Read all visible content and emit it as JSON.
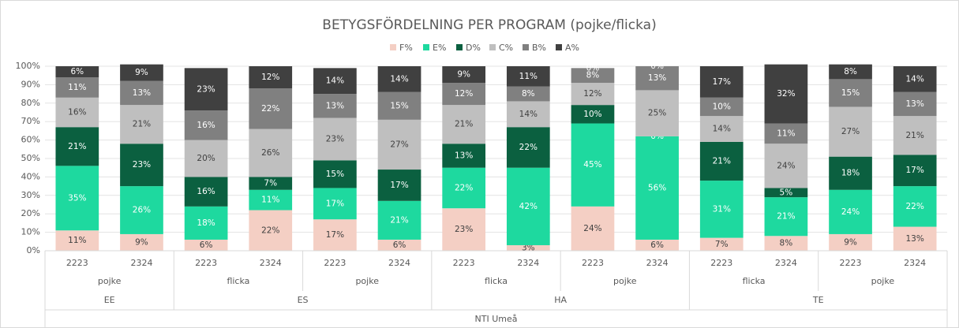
{
  "chart_data": {
    "type": "stacked_bar",
    "title": "BETYGSFÖRDELNING PER PROGRAM (pojke/flicka)",
    "top_group": "NTI Umeå",
    "groups": [
      {
        "name": "EE",
        "subgroups": [
          {
            "name": "pojke",
            "categories": [
              "2223",
              "2324"
            ]
          }
        ]
      },
      {
        "name": "ES",
        "subgroups": [
          {
            "name": "flicka",
            "categories": [
              "2223",
              "2324"
            ]
          },
          {
            "name": "pojke",
            "categories": [
              "2223",
              "2324"
            ]
          }
        ]
      },
      {
        "name": "HA",
        "subgroups": [
          {
            "name": "flicka",
            "categories": [
              "2223",
              "2324"
            ]
          },
          {
            "name": "pojke",
            "categories": [
              "2223",
              "2324"
            ]
          }
        ]
      },
      {
        "name": "TE",
        "subgroups": [
          {
            "name": "flicka",
            "categories": [
              "2223",
              "2324"
            ]
          },
          {
            "name": "pojke",
            "categories": [
              "2223",
              "2324"
            ]
          }
        ]
      }
    ],
    "series": [
      {
        "name": "F%",
        "color": "#f4cfc4",
        "values": [
          11,
          9,
          6,
          22,
          17,
          6,
          23,
          3,
          24,
          6,
          7,
          8,
          9,
          13
        ],
        "value_labels": [
          "11%",
          "9%",
          "6%",
          "22%",
          "17%",
          "6%",
          "23%",
          "3%",
          "24%",
          "6%",
          "7%",
          "8%",
          "9%",
          "13%"
        ]
      },
      {
        "name": "E%",
        "color": "#1ed99f",
        "values": [
          35,
          26,
          18,
          11,
          17,
          21,
          22,
          42,
          45,
          56,
          31,
          21,
          24,
          22
        ],
        "value_labels": [
          "35%",
          "26%",
          "18%",
          "11%",
          "17%",
          "21%",
          "22%",
          "42%",
          "45%",
          "56%",
          "31%",
          "21%",
          "24%",
          "22%"
        ]
      },
      {
        "name": "D%",
        "color": "#0b6040",
        "values": [
          21,
          23,
          16,
          7,
          15,
          17,
          13,
          22,
          10,
          0,
          21,
          5,
          18,
          17
        ],
        "value_labels": [
          "21%",
          "23%",
          "16%",
          "7%",
          "15%",
          "17%",
          "13%",
          "22%",
          "10%",
          "0%",
          "21%",
          "5%",
          "18%",
          "17%"
        ]
      },
      {
        "name": "C%",
        "color": "#bfbfbf",
        "values": [
          16,
          21,
          20,
          26,
          23,
          27,
          21,
          14,
          12,
          25,
          14,
          24,
          27,
          21
        ],
        "value_labels": [
          "16%",
          "21%",
          "20%",
          "26%",
          "23%",
          "27%",
          "21%",
          "14%",
          "12%",
          "25%",
          "14%",
          "24%",
          "27%",
          "21%"
        ]
      },
      {
        "name": "B%",
        "color": "#808080",
        "values": [
          11,
          13,
          16,
          22,
          13,
          15,
          12,
          8,
          8,
          13,
          10,
          11,
          15,
          13
        ],
        "value_labels": [
          "11%",
          "13%",
          "16%",
          "22%",
          "13%",
          "15%",
          "12%",
          "8%",
          "8%",
          "13%",
          "10%",
          "11%",
          "15%",
          "13%"
        ]
      },
      {
        "name": "A%",
        "color": "#404040",
        "values": [
          6,
          9,
          23,
          12,
          14,
          14,
          9,
          11,
          0,
          0,
          17,
          32,
          8,
          14
        ],
        "value_labels": [
          "6%",
          "9%",
          "23%",
          "12%",
          "14%",
          "14%",
          "9%",
          "11%",
          "0%",
          "0%",
          "17%",
          "32%",
          "8%",
          "14%"
        ]
      }
    ],
    "ylim": [
      0,
      100
    ],
    "yticks": [
      {
        "value": 0,
        "label": "0%"
      },
      {
        "value": 10,
        "label": "10%"
      },
      {
        "value": 20,
        "label": "20%"
      },
      {
        "value": 30,
        "label": "30%"
      },
      {
        "value": 40,
        "label": "40%"
      },
      {
        "value": 50,
        "label": "50%"
      },
      {
        "value": 60,
        "label": "60%"
      },
      {
        "value": 70,
        "label": "70%"
      },
      {
        "value": 80,
        "label": "80%"
      },
      {
        "value": 90,
        "label": "90%"
      },
      {
        "value": 100,
        "label": "100%"
      }
    ],
    "grid": true,
    "legend": "top"
  }
}
